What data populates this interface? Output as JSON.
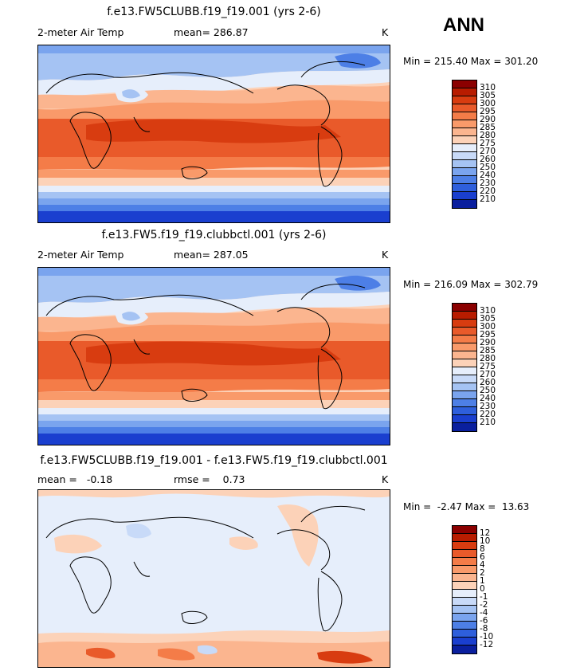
{
  "season": "ANN",
  "panels": [
    {
      "title": "f.e13.FW5CLUBB.f19_f19.001 (yrs 2-6)",
      "left_label": "2-meter Air Temp",
      "center_label": "mean= 286.87",
      "right_label": "K",
      "minmax": "Min = 215.40 Max = 301.20",
      "colorbar": {
        "ticks": [
          "310",
          "305",
          "300",
          "295",
          "290",
          "285",
          "280",
          "275",
          "270",
          "260",
          "250",
          "240",
          "230",
          "220",
          "210"
        ],
        "colors": [
          "#8b0000",
          "#b81c00",
          "#d83c10",
          "#e95a2a",
          "#f47c48",
          "#f99a6a",
          "#fbb58f",
          "#fcd2b8",
          "#e6eefb",
          "#c8daf8",
          "#a5c3f3",
          "#7aa4ee",
          "#4d7fe6",
          "#2e5fdc",
          "#1a3fcf",
          "#0a1f9e"
        ]
      }
    },
    {
      "title": "f.e13.FW5.f19_f19.clubbctl.001 (yrs 2-6)",
      "left_label": "2-meter Air Temp",
      "center_label": "mean= 287.05",
      "right_label": "K",
      "minmax": "Min = 216.09 Max = 302.79",
      "colorbar": {
        "ticks": [
          "310",
          "305",
          "300",
          "295",
          "290",
          "285",
          "280",
          "275",
          "270",
          "260",
          "250",
          "240",
          "230",
          "220",
          "210"
        ],
        "colors": [
          "#8b0000",
          "#b81c00",
          "#d83c10",
          "#e95a2a",
          "#f47c48",
          "#f99a6a",
          "#fbb58f",
          "#fcd2b8",
          "#e6eefb",
          "#c8daf8",
          "#a5c3f3",
          "#7aa4ee",
          "#4d7fe6",
          "#2e5fdc",
          "#1a3fcf",
          "#0a1f9e"
        ]
      }
    },
    {
      "title": "f.e13.FW5CLUBB.f19_f19.001 - f.e13.FW5.f19_f19.clubbctl.001",
      "left_label": "mean =   -0.18",
      "center_label": "rmse =    0.73",
      "right_label": "K",
      "minmax": "Min =  -2.47 Max =  13.63",
      "colorbar": {
        "ticks": [
          "12",
          "10",
          "8",
          "6",
          "4",
          "2",
          "1",
          "0",
          "-1",
          "-2",
          "-4",
          "-6",
          "-8",
          "-10",
          "-12"
        ],
        "colors": [
          "#8b0000",
          "#b81c00",
          "#d83c10",
          "#e95a2a",
          "#f47c48",
          "#f99a6a",
          "#fbb58f",
          "#fcd2b8",
          "#e6eefb",
          "#c8daf8",
          "#a5c3f3",
          "#7aa4ee",
          "#4d7fe6",
          "#2e5fdc",
          "#1a3fcf",
          "#0a1f9e"
        ]
      }
    }
  ]
}
